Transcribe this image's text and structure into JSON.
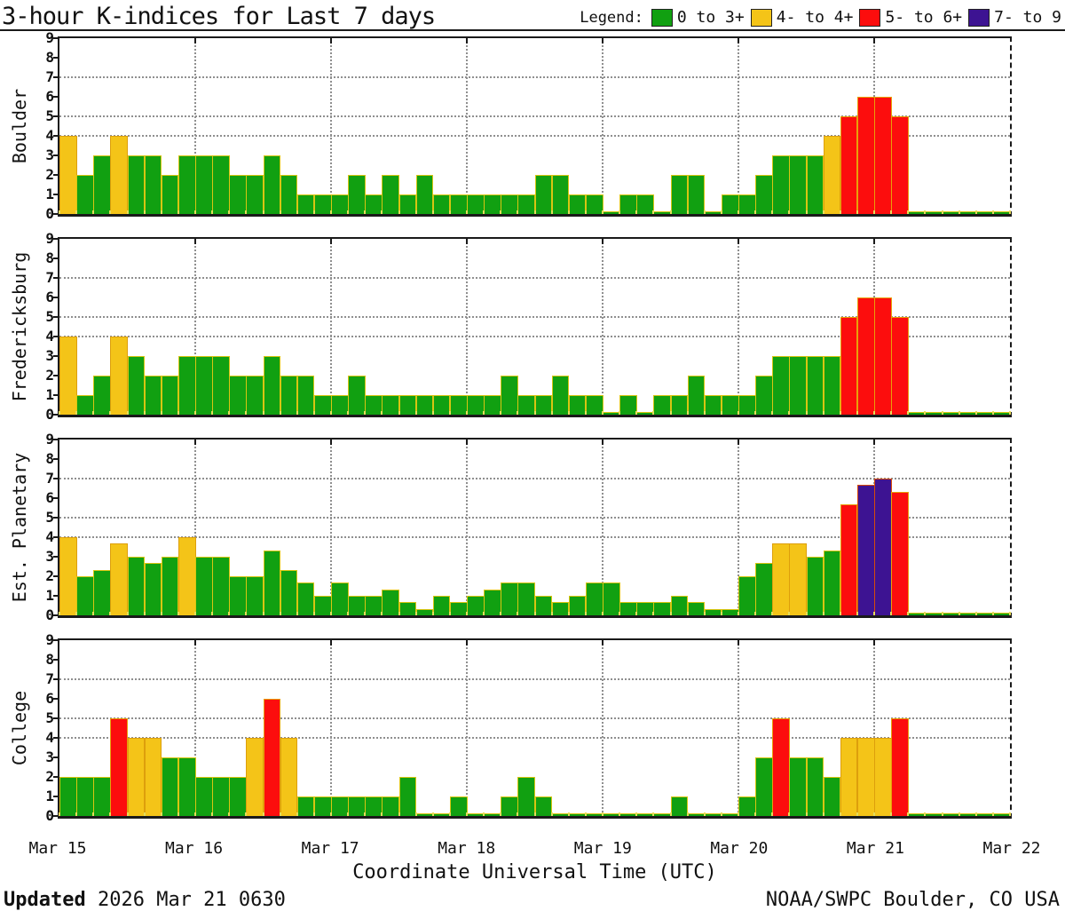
{
  "chart_data": {
    "type": "bar",
    "title": "3-hour K-indices for Last 7 days",
    "xlabel": "Coordinate Universal Time (UTC)",
    "x_tick_labels": [
      "Mar 15",
      "Mar 16",
      "Mar 17",
      "Mar 18",
      "Mar 19",
      "Mar 20",
      "Mar 21",
      "Mar 22"
    ],
    "bars_per_day": 8,
    "days": 7,
    "ylim": [
      0,
      9
    ],
    "y_tick_labels": [
      0,
      1,
      2,
      3,
      4,
      5,
      6,
      7,
      8,
      9
    ],
    "hgrid_at": [
      4,
      5,
      7
    ],
    "grid": true,
    "legend_label": "Legend:",
    "legend": [
      {
        "label": "0 to 3+",
        "color": "#11a011"
      },
      {
        "label": "4- to 4+",
        "color": "#f4c418"
      },
      {
        "label": "5- to 6+",
        "color": "#fc0d0d"
      },
      {
        "label": "7- to 9",
        "color": "#3d1392"
      }
    ],
    "colors": {
      "green": "#11a011",
      "yellow": "#f4c418",
      "red": "#fc0d0d",
      "purple": "#3d1392"
    },
    "thresholds": {
      "yellow_min": 3.5,
      "red_min": 4.5,
      "purple_min": 6.5
    },
    "panels": [
      {
        "station": "Boulder",
        "values": [
          4,
          2,
          3,
          4,
          3,
          3,
          2,
          3,
          3,
          3,
          2,
          2,
          3,
          2,
          1,
          1,
          1,
          2,
          1,
          2,
          1,
          2,
          1,
          1,
          1,
          1,
          1,
          1,
          2,
          2,
          1,
          1,
          0,
          1,
          1,
          0,
          2,
          2,
          0,
          1,
          1,
          2,
          3,
          3,
          3,
          4,
          5,
          6,
          6,
          5,
          0,
          0,
          0,
          0,
          0,
          0
        ]
      },
      {
        "station": "Fredericksburg",
        "values": [
          4,
          1,
          2,
          4,
          3,
          2,
          2,
          3,
          3,
          3,
          2,
          2,
          3,
          2,
          2,
          1,
          1,
          2,
          1,
          1,
          1,
          1,
          1,
          1,
          1,
          1,
          2,
          1,
          1,
          2,
          1,
          1,
          0,
          1,
          0,
          1,
          1,
          2,
          1,
          1,
          1,
          2,
          3,
          3,
          3,
          3,
          5,
          6,
          6,
          5,
          0,
          0,
          0,
          0,
          0,
          0
        ]
      },
      {
        "station": "Est. Planetary",
        "values": [
          4,
          2,
          2.33,
          3.67,
          3,
          2.67,
          3,
          4,
          3,
          3,
          2,
          2,
          3.33,
          2.33,
          1.67,
          1,
          1.67,
          1,
          1,
          1.33,
          0.67,
          0.33,
          1,
          0.67,
          1,
          1.33,
          1.67,
          1.67,
          1,
          0.67,
          1,
          1.67,
          1.67,
          0.67,
          0.67,
          0.67,
          1,
          0.67,
          0.33,
          0.33,
          2,
          2.67,
          3.67,
          3.67,
          3,
          3.33,
          5.67,
          6.67,
          7,
          6.33,
          0,
          0,
          0,
          0,
          0,
          0
        ]
      },
      {
        "station": "College",
        "values": [
          2,
          2,
          2,
          5,
          4,
          4,
          3,
          3,
          2,
          2,
          2,
          4,
          6,
          4,
          1,
          1,
          1,
          1,
          1,
          1,
          2,
          0,
          0,
          1,
          0,
          0,
          1,
          2,
          1,
          0,
          0,
          0,
          0,
          0,
          0,
          0,
          1,
          0,
          0,
          0,
          1,
          3,
          5,
          3,
          3,
          2,
          4,
          4,
          4,
          5,
          0,
          0,
          0,
          0,
          0,
          0
        ]
      }
    ]
  },
  "footer": {
    "updated_label": "Updated",
    "updated_value": "2026 Mar 21 0630",
    "credit": "NOAA/SWPC Boulder, CO USA"
  }
}
